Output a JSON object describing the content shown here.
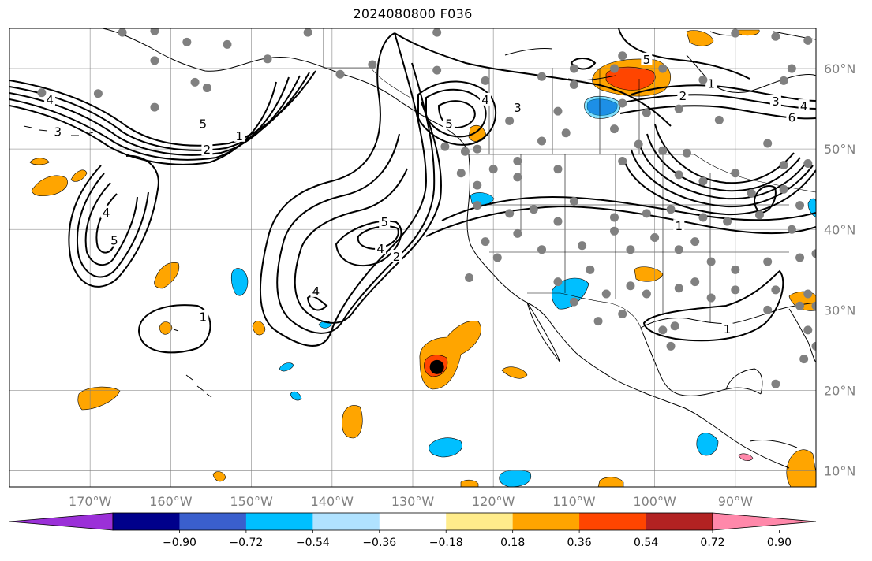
{
  "title": "2024080800 F036",
  "map": {
    "projection": "plate-carree",
    "lon_range": [
      -180,
      -80
    ],
    "lat_range": [
      8,
      65
    ],
    "gridlines": true,
    "lon_ticks": [
      "170°W",
      "160°W",
      "150°W",
      "140°W",
      "130°W",
      "120°W",
      "110°W",
      "100°W",
      "90°W"
    ],
    "lat_ticks": [
      "10°N",
      "20°N",
      "30°N",
      "40°N",
      "50°N",
      "60°N"
    ],
    "ocean_color": "#ffffff",
    "coastline_color": "#000000"
  },
  "colorbar": {
    "colors": [
      "#9b30d8",
      "#00008b",
      "#3a5fcd",
      "#00bfff",
      "#b0e2ff",
      "#ffffff",
      "#ffec8b",
      "#ffa500",
      "#ff4500",
      "#b22222",
      "#ff88aa"
    ],
    "tick_labels": [
      "−0.90",
      "−0.72",
      "−0.54",
      "−0.36",
      "−0.18",
      "0.18",
      "0.36",
      "0.54",
      "0.72",
      "0.90"
    ],
    "extend": "both"
  },
  "contour_labels": [
    {
      "text": "1",
      "lon": -151.5,
      "lat": 51.5
    },
    {
      "text": "2",
      "lon": -155.5,
      "lat": 49.8
    },
    {
      "text": "5",
      "lon": -156,
      "lat": 53
    },
    {
      "text": "3",
      "lon": -174,
      "lat": 52
    },
    {
      "text": "4",
      "lon": -175,
      "lat": 56
    },
    {
      "text": "4",
      "lon": -168,
      "lat": 42
    },
    {
      "text": "5",
      "lon": -167,
      "lat": 38.5
    },
    {
      "text": "1",
      "lon": -156,
      "lat": 29
    },
    {
      "text": "5",
      "lon": -133.5,
      "lat": 40.8
    },
    {
      "text": "4",
      "lon": -134,
      "lat": 37.5
    },
    {
      "text": "2",
      "lon": -132,
      "lat": 36.5
    },
    {
      "text": "4",
      "lon": -142,
      "lat": 32.2
    },
    {
      "text": "5",
      "lon": -125.5,
      "lat": 53
    },
    {
      "text": "4",
      "lon": -121,
      "lat": 56
    },
    {
      "text": "3",
      "lon": -117,
      "lat": 55
    },
    {
      "text": "1",
      "lon": -93,
      "lat": 58
    },
    {
      "text": "2",
      "lon": -96.5,
      "lat": 56.5
    },
    {
      "text": "3",
      "lon": -85,
      "lat": 55.8
    },
    {
      "text": "4",
      "lon": -81.5,
      "lat": 55.2
    },
    {
      "text": "6",
      "lon": -83,
      "lat": 53.8
    },
    {
      "text": "5",
      "lon": -101,
      "lat": 61
    },
    {
      "text": "1",
      "lon": -97,
      "lat": 40.3
    },
    {
      "text": "1",
      "lon": -91,
      "lat": 27.5
    }
  ],
  "markers": {
    "gray_dot_color": "#808080",
    "black_dot": {
      "lon": -127,
      "lat": 22.9,
      "color": "#000000"
    }
  }
}
